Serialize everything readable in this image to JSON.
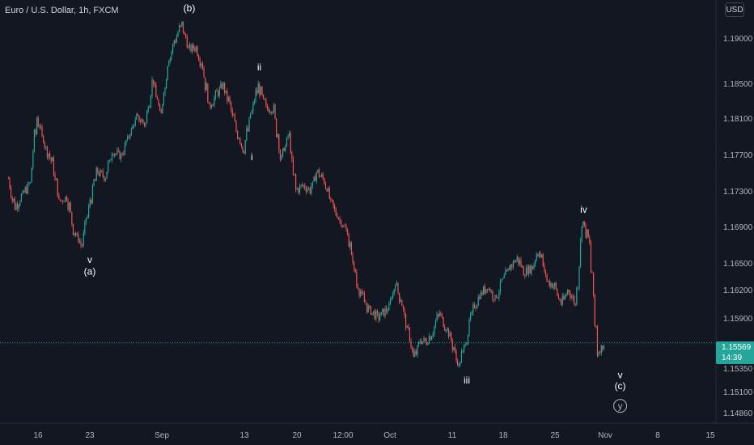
{
  "header": {
    "symbol": "Euro / U.S. Dollar, 1h, FXCM",
    "currency": "USD"
  },
  "last_price": {
    "price": "1.15569",
    "countdown": "14:39"
  },
  "colors": {
    "background": "#131722",
    "up": "#26a69a",
    "down": "#ef5350",
    "text": "#d1d4dc",
    "price_line": "#26a69a",
    "axis_text": "#b2b5be"
  },
  "chart_data": {
    "type": "candlestick",
    "title": "Euro / U.S. Dollar, 1h, FXCM",
    "xlabel": "",
    "ylabel": "",
    "ylim": [
      1.1473,
      1.1929
    ],
    "grid": false,
    "x_ticks": [
      "16",
      "23",
      "Sep",
      "13",
      "20",
      "12:00",
      "Oct",
      "11",
      "18",
      "25",
      "Nov",
      "8",
      "15"
    ],
    "y_ticks": [
      "1.19000",
      "1.18500",
      "1.18100",
      "1.17700",
      "1.17300",
      "1.16900",
      "1.16500",
      "1.16200",
      "1.15900",
      "1.15350",
      "1.15100",
      "1.14860"
    ],
    "close_path": [
      {
        "x": "Aug 12",
        "close": 1.1738
      },
      {
        "x": "Aug 13",
        "close": 1.1706
      },
      {
        "x": "Aug 15",
        "close": 1.1732
      },
      {
        "x": "Aug 16",
        "close": 1.1805
      },
      {
        "x": "Aug 17",
        "close": 1.1775
      },
      {
        "x": "Aug 18",
        "close": 1.1757
      },
      {
        "x": "Aug 19",
        "close": 1.1712
      },
      {
        "x": "Aug 20",
        "close": 1.1718
      },
      {
        "x": "Aug 21",
        "close": 1.168
      },
      {
        "x": "Aug 22",
        "close": 1.1665
      },
      {
        "x": "Aug 23",
        "close": 1.1705
      },
      {
        "x": "Aug 24",
        "close": 1.1745
      },
      {
        "x": "Aug 25",
        "close": 1.174
      },
      {
        "x": "Aug 26",
        "close": 1.1768
      },
      {
        "x": "Aug 27",
        "close": 1.1762
      },
      {
        "x": "Aug 28",
        "close": 1.1785
      },
      {
        "x": "Aug 29",
        "close": 1.1805
      },
      {
        "x": "Aug 30",
        "close": 1.1798
      },
      {
        "x": "Aug 31",
        "close": 1.1845
      },
      {
        "x": "Sep 1",
        "close": 1.1808
      },
      {
        "x": "Sep 2",
        "close": 1.1865
      },
      {
        "x": "Sep 3",
        "close": 1.189
      },
      {
        "x": "Sep 4",
        "close": 1.1908
      },
      {
        "x": "Sep 5",
        "close": 1.188
      },
      {
        "x": "Sep 6",
        "close": 1.1882
      },
      {
        "x": "Sep 7",
        "close": 1.1862
      },
      {
        "x": "Sep 8",
        "close": 1.1815
      },
      {
        "x": "Sep 9",
        "close": 1.183
      },
      {
        "x": "Sep 10",
        "close": 1.184
      },
      {
        "x": "Sep 11",
        "close": 1.182
      },
      {
        "x": "Sep 12",
        "close": 1.179
      },
      {
        "x": "Sep 13",
        "close": 1.177
      },
      {
        "x": "Sep 14",
        "close": 1.181
      },
      {
        "x": "Sep 15",
        "close": 1.184
      },
      {
        "x": "Sep 16",
        "close": 1.1815
      },
      {
        "x": "Sep 17",
        "close": 1.1815
      },
      {
        "x": "Sep 18",
        "close": 1.176
      },
      {
        "x": "Sep 19",
        "close": 1.1785
      },
      {
        "x": "Sep 20",
        "close": 1.1725
      },
      {
        "x": "Sep 21",
        "close": 1.173
      },
      {
        "x": "Sep 22",
        "close": 1.1725
      },
      {
        "x": "Sep 23",
        "close": 1.1745
      },
      {
        "x": "Sep 24",
        "close": 1.1735
      },
      {
        "x": "Sep 25",
        "close": 1.171
      },
      {
        "x": "Sep 26",
        "close": 1.1695
      },
      {
        "x": "Sep 27",
        "close": 1.168
      },
      {
        "x": "Sep 28",
        "close": 1.162
      },
      {
        "x": "Sep 29",
        "close": 1.1595
      },
      {
        "x": "Sep 30",
        "close": 1.1585
      },
      {
        "x": "Oct 1",
        "close": 1.1595
      },
      {
        "x": "Oct 2",
        "close": 1.1625
      },
      {
        "x": "Oct 3",
        "close": 1.16
      },
      {
        "x": "Oct 4",
        "close": 1.157
      },
      {
        "x": "Oct 5",
        "close": 1.154
      },
      {
        "x": "Oct 6",
        "close": 1.156
      },
      {
        "x": "Oct 7",
        "close": 1.1558
      },
      {
        "x": "Oct 8",
        "close": 1.157
      },
      {
        "x": "Oct 9",
        "close": 1.159
      },
      {
        "x": "Oct 10",
        "close": 1.1575
      },
      {
        "x": "Oct 11",
        "close": 1.156
      },
      {
        "x": "Oct 12",
        "close": 1.153
      },
      {
        "x": "Oct 13",
        "close": 1.156
      },
      {
        "x": "Oct 14",
        "close": 1.1595
      },
      {
        "x": "Oct 15",
        "close": 1.161
      },
      {
        "x": "Oct 16",
        "close": 1.162
      },
      {
        "x": "Oct 17",
        "close": 1.1605
      },
      {
        "x": "Oct 18",
        "close": 1.1625
      },
      {
        "x": "Oct 19",
        "close": 1.164
      },
      {
        "x": "Oct 20",
        "close": 1.165
      },
      {
        "x": "Oct 21",
        "close": 1.1635
      },
      {
        "x": "Oct 22",
        "close": 1.164
      },
      {
        "x": "Oct 23",
        "close": 1.166
      },
      {
        "x": "Oct 24",
        "close": 1.1625
      },
      {
        "x": "Oct 25",
        "close": 1.162
      },
      {
        "x": "Oct 26",
        "close": 1.16
      },
      {
        "x": "Oct 27",
        "close": 1.1615
      },
      {
        "x": "Oct 28",
        "close": 1.1598
      },
      {
        "x": "Oct 29",
        "close": 1.169
      },
      {
        "x": "Oct 30",
        "close": 1.1665
      },
      {
        "x": "Oct 31",
        "close": 1.1545
      },
      {
        "x": "Nov 1",
        "close": 1.1557
      }
    ],
    "wave_labels": [
      {
        "text": "v",
        "x": "Aug 23",
        "price": 1.1645
      },
      {
        "text": "(a)",
        "x": "Aug 23",
        "price": 1.1632
      },
      {
        "text": "(b)",
        "x": "Sep 5",
        "price": 1.1922
      },
      {
        "text": "ii",
        "x": "Sep 15",
        "price": 1.1857
      },
      {
        "text": "i",
        "x": "Sep 14",
        "price": 1.1758
      },
      {
        "text": "iii",
        "x": "Oct 13",
        "price": 1.1512
      },
      {
        "text": "iv",
        "x": "Oct 29",
        "price": 1.17
      },
      {
        "text": "v",
        "x": "Nov 3",
        "price": 1.1518
      },
      {
        "text": "(c)",
        "x": "Nov 3",
        "price": 1.1506
      },
      {
        "text": "y",
        "x": "Nov 3",
        "price": 1.1484
      }
    ]
  }
}
